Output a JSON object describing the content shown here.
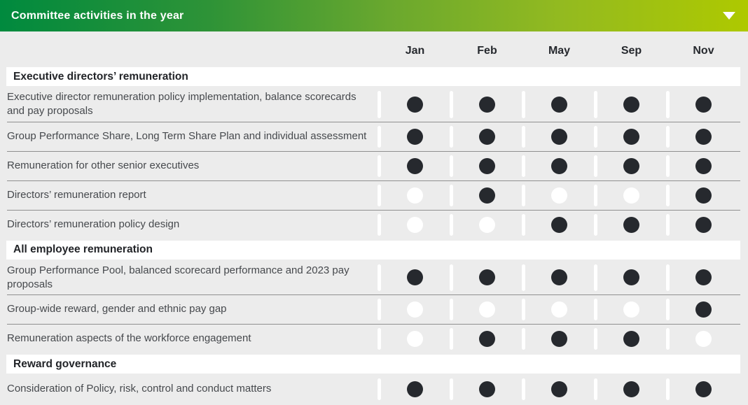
{
  "header": {
    "title": "Committee activities in the year",
    "dropdown_icon": "chevron-down-icon"
  },
  "columns": [
    "Jan",
    "Feb",
    "May",
    "Sep",
    "Nov"
  ],
  "colors": {
    "header_gradient_start": "#008a3e",
    "header_gradient_end": "#aec900",
    "body_background": "#ececec",
    "section_band_background": "#ffffff",
    "dot_filled": "#26292e",
    "dot_empty": "#ffffff",
    "row_separator": "#8f8f8f",
    "heading_text": "#26292e",
    "row_text": "#46494d"
  },
  "sections": [
    {
      "heading": "Executive directors’ remuneration",
      "rows": [
        {
          "label": "Executive director remuneration policy implementation, balance scorecards and pay proposals",
          "dots": [
            1,
            1,
            1,
            1,
            1
          ]
        },
        {
          "label": "Group Performance Share, Long Term Share Plan and individual assessment",
          "dots": [
            1,
            1,
            1,
            1,
            1
          ]
        },
        {
          "label": "Remuneration for other senior executives",
          "dots": [
            1,
            1,
            1,
            1,
            1
          ]
        },
        {
          "label": "Directors’ remuneration report",
          "dots": [
            0,
            1,
            0,
            0,
            1
          ]
        },
        {
          "label": "Directors’ remuneration policy design",
          "dots": [
            0,
            0,
            1,
            1,
            1
          ]
        }
      ]
    },
    {
      "heading": "All employee remuneration",
      "rows": [
        {
          "label": "Group Performance Pool, balanced scorecard performance and 2023 pay proposals",
          "dots": [
            1,
            1,
            1,
            1,
            1
          ]
        },
        {
          "label": "Group-wide reward, gender and ethnic pay gap",
          "dots": [
            0,
            0,
            0,
            0,
            1
          ]
        },
        {
          "label": "Remuneration aspects of the workforce engagement",
          "dots": [
            0,
            1,
            1,
            1,
            0
          ]
        }
      ]
    },
    {
      "heading": "Reward governance",
      "rows": [
        {
          "label": "Consideration of Policy, risk, control and conduct matters",
          "dots": [
            1,
            1,
            1,
            1,
            1
          ]
        }
      ]
    }
  ]
}
